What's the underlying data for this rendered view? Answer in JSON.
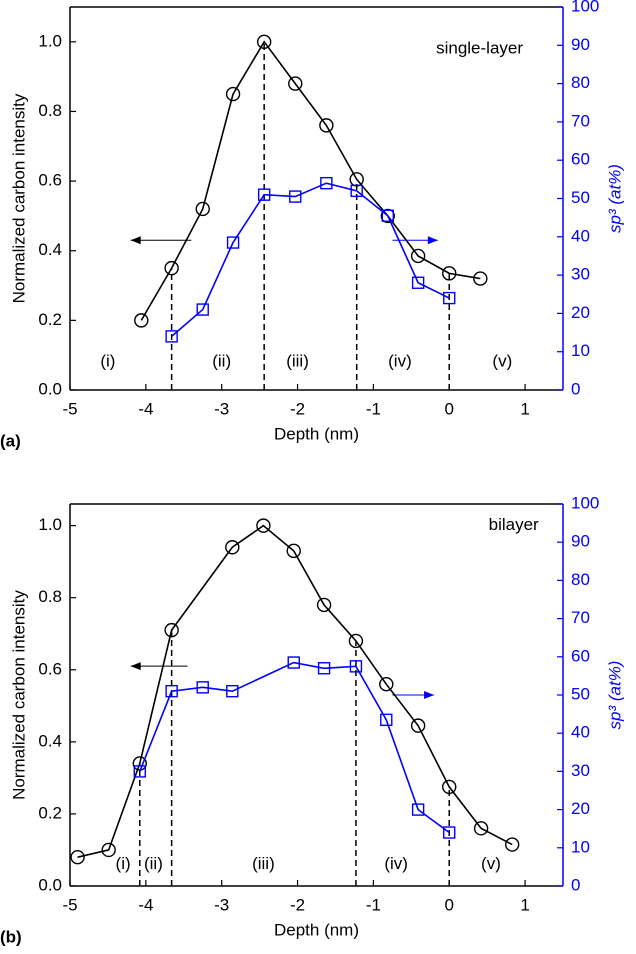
{
  "chart_data": [
    {
      "type": "line",
      "panel_label": "(a)",
      "annotation": "single-layer",
      "xlabel": "Depth (nm)",
      "ylabel": "Normalized carbon intensity",
      "y2label": "sp³ (at%)",
      "xlim": [
        -5,
        1.5
      ],
      "xticks": [
        -5,
        -4,
        -3,
        -2,
        -1,
        0,
        1
      ],
      "ylim": [
        0,
        1.1
      ],
      "yticks": [
        {
          "value": 0,
          "label": "0.0"
        },
        0.2,
        0.4,
        0.6,
        0.8,
        {
          "value": 1,
          "label": "1.0"
        }
      ],
      "y2lim": [
        0,
        100
      ],
      "y2ticks": [
        0,
        10,
        20,
        30,
        40,
        50,
        60,
        70,
        80,
        90,
        100
      ],
      "y2color": "#0000ff",
      "regions": [
        "(i)",
        "(ii)",
        "(iii)",
        "(iv)",
        "(v)"
      ],
      "dividers": [
        -3.66,
        -2.44,
        -1.22,
        0
      ],
      "series": [
        {
          "color": "#000000",
          "marker": "circle",
          "x": [
            -4.06,
            -3.66,
            -3.25,
            -2.85,
            -2.44,
            -2.03,
            -1.62,
            -1.22,
            -0.81,
            -0.41,
            0,
            0.41
          ],
          "values": [
            0.2,
            0.35,
            0.52,
            0.85,
            1.0,
            0.88,
            0.76,
            0.605,
            0.5,
            0.385,
            0.335,
            0.32
          ]
        },
        {
          "color": "#0000ff",
          "marker": "square",
          "axis": "y2",
          "x": [
            -3.66,
            -3.25,
            -2.85,
            -2.44,
            -2.03,
            -1.62,
            -1.22,
            -0.81,
            -0.41,
            0
          ],
          "values": [
            14,
            21,
            38.5,
            51,
            50.5,
            54,
            52,
            45.5,
            28,
            24
          ]
        }
      ]
    },
    {
      "type": "line",
      "panel_label": "(b)",
      "annotation": "bilayer",
      "xlabel": "Depth (nm)",
      "ylabel": "Normalized carbon intensity",
      "y2label": "sp³ (at%)",
      "xlim": [
        -5,
        1.5
      ],
      "xticks": [
        -5,
        -4,
        -3,
        -2,
        -1,
        0,
        1
      ],
      "ylim": [
        0,
        1.06
      ],
      "yticks": [
        {
          "value": 0,
          "label": "0.0"
        },
        0.2,
        0.4,
        0.6,
        0.8,
        {
          "value": 1,
          "label": "1.0"
        }
      ],
      "y2lim": [
        0,
        100
      ],
      "y2ticks": [
        0,
        10,
        20,
        30,
        40,
        50,
        60,
        70,
        80,
        90,
        100
      ],
      "y2color": "#0000ff",
      "regions": [
        "(i)",
        "(ii)",
        "(iii)",
        "(iv)",
        "(v)"
      ],
      "dividers": [
        -4.08,
        -3.66,
        -1.23,
        0
      ],
      "series": [
        {
          "color": "#000000",
          "marker": "circle",
          "x": [
            -4.9,
            -4.49,
            -4.08,
            -3.66,
            -2.86,
            -2.45,
            -2.05,
            -1.65,
            -1.23,
            -0.83,
            -0.41,
            0,
            0.42,
            0.83
          ],
          "values": [
            0.08,
            0.1,
            0.34,
            0.71,
            0.94,
            1.0,
            0.93,
            0.78,
            0.68,
            0.56,
            0.445,
            0.275,
            0.16,
            0.115
          ]
        },
        {
          "color": "#0000ff",
          "marker": "square",
          "axis": "y2",
          "x": [
            -4.08,
            -3.66,
            -3.25,
            -2.86,
            -2.05,
            -1.65,
            -1.23,
            -0.83,
            -0.41,
            0
          ],
          "values": [
            30,
            51,
            52,
            51,
            58.5,
            57,
            57.5,
            43.5,
            20,
            14
          ]
        }
      ]
    }
  ]
}
